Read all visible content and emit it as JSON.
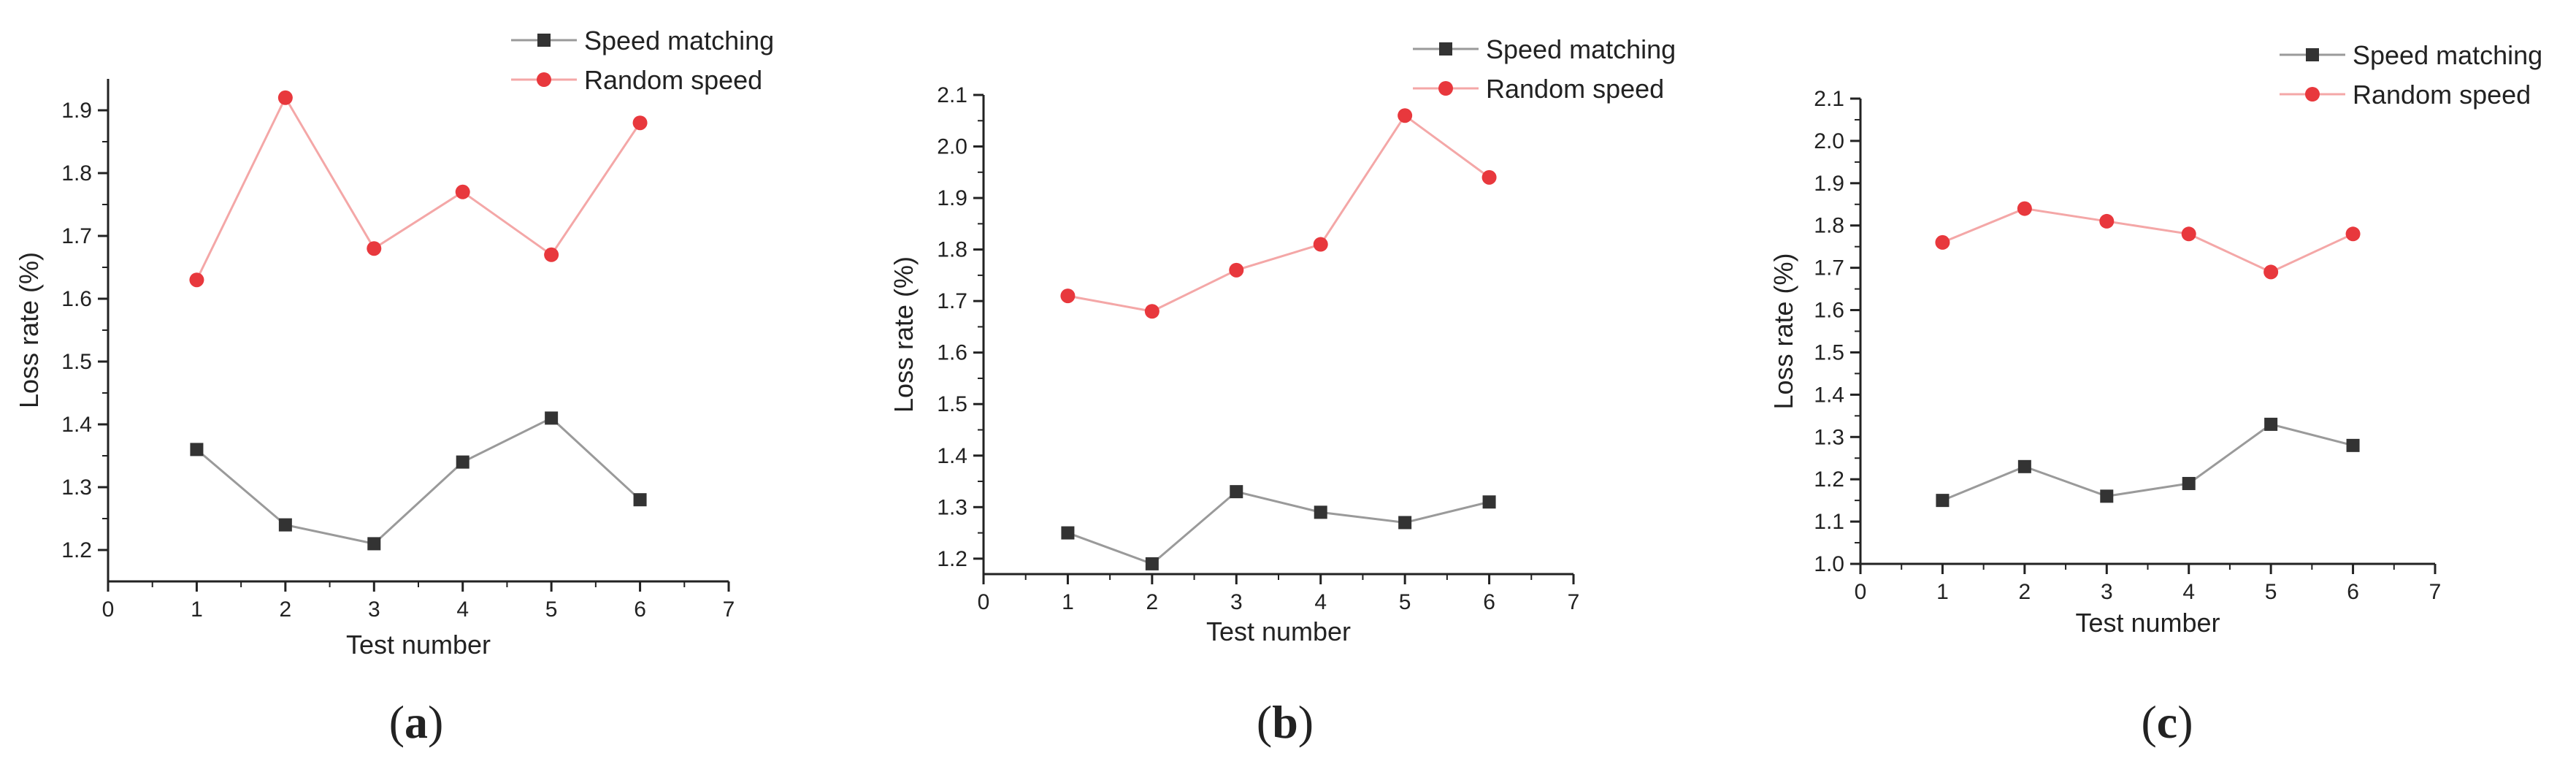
{
  "figure": {
    "panels": [
      "a",
      "b",
      "c"
    ]
  },
  "chart_data": [
    {
      "type": "line",
      "panel_label": "a",
      "title": "",
      "xlabel": "Test number",
      "ylabel": "Loss rate (%)",
      "xlim": [
        0,
        7
      ],
      "ylim": [
        1.15,
        1.95
      ],
      "xticks": [
        0,
        1,
        2,
        3,
        4,
        5,
        6,
        7
      ],
      "yticks": [
        1.2,
        1.3,
        1.4,
        1.5,
        1.6,
        1.7,
        1.8,
        1.9
      ],
      "grid": false,
      "legend_position": "top-right",
      "x": [
        1,
        2,
        3,
        4,
        5,
        6
      ],
      "series": [
        {
          "name": "Speed matching",
          "color": "#9a9a9a",
          "marker_color": "#333333",
          "marker": "square",
          "values": [
            1.36,
            1.24,
            1.21,
            1.34,
            1.41,
            1.28
          ]
        },
        {
          "name": "Random speed",
          "color": "#f4a7a7",
          "marker_color": "#e8383d",
          "marker": "circle",
          "values": [
            1.63,
            1.92,
            1.68,
            1.77,
            1.67,
            1.88
          ]
        }
      ]
    },
    {
      "type": "line",
      "panel_label": "b",
      "title": "",
      "xlabel": "Test number",
      "ylabel": "Loss rate (%)",
      "xlim": [
        0,
        7
      ],
      "ylim": [
        1.17,
        2.1
      ],
      "xticks": [
        0,
        1,
        2,
        3,
        4,
        5,
        6,
        7
      ],
      "yticks": [
        1.2,
        1.3,
        1.4,
        1.5,
        1.6,
        1.7,
        1.8,
        1.9,
        2.0,
        2.1
      ],
      "grid": false,
      "legend_position": "top-right",
      "x": [
        1,
        2,
        3,
        4,
        5,
        6
      ],
      "series": [
        {
          "name": "Speed matching",
          "color": "#9a9a9a",
          "marker_color": "#333333",
          "marker": "square",
          "values": [
            1.25,
            1.19,
            1.33,
            1.29,
            1.27,
            1.31
          ]
        },
        {
          "name": "Random speed",
          "color": "#f4a7a7",
          "marker_color": "#e8383d",
          "marker": "circle",
          "values": [
            1.71,
            1.68,
            1.76,
            1.81,
            2.06,
            1.94
          ]
        }
      ]
    },
    {
      "type": "line",
      "panel_label": "c",
      "title": "",
      "xlabel": "Test number",
      "ylabel": "Loss rate (%)",
      "xlim": [
        0,
        7
      ],
      "ylim": [
        1.0,
        2.1
      ],
      "xticks": [
        0,
        1,
        2,
        3,
        4,
        5,
        6,
        7
      ],
      "yticks": [
        1.0,
        1.1,
        1.2,
        1.3,
        1.4,
        1.5,
        1.6,
        1.7,
        1.8,
        1.9,
        2.0,
        2.1
      ],
      "grid": false,
      "legend_position": "top-right",
      "x": [
        1,
        2,
        3,
        4,
        5,
        6
      ],
      "series": [
        {
          "name": "Speed matching",
          "color": "#9a9a9a",
          "marker_color": "#333333",
          "marker": "square",
          "values": [
            1.15,
            1.23,
            1.16,
            1.19,
            1.33,
            1.28
          ]
        },
        {
          "name": "Random speed",
          "color": "#f4a7a7",
          "marker_color": "#e8383d",
          "marker": "circle",
          "values": [
            1.76,
            1.84,
            1.81,
            1.78,
            1.69,
            1.78
          ]
        }
      ]
    }
  ]
}
